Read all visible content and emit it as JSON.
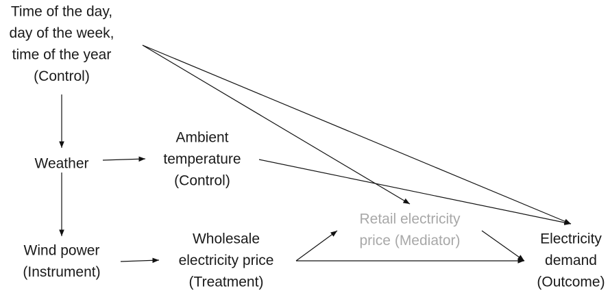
{
  "nodes": [
    {
      "lines": [
        "Time of the day,",
        "day of the week,",
        "time of the year",
        "(Control)"
      ]
    },
    {
      "lines": [
        "Weather"
      ]
    },
    {
      "lines": [
        "Ambient",
        "temperature",
        "(Control)"
      ]
    },
    {
      "lines": [
        "Wind power",
        "(Instrument)"
      ]
    },
    {
      "lines": [
        "Wholesale",
        "electricity price",
        "(Treatment)"
      ]
    },
    {
      "lines": [
        "Retail electricity",
        "price (Mediator)"
      ]
    },
    {
      "lines": [
        "Electricity",
        "demand",
        "(Outcome)"
      ]
    }
  ]
}
